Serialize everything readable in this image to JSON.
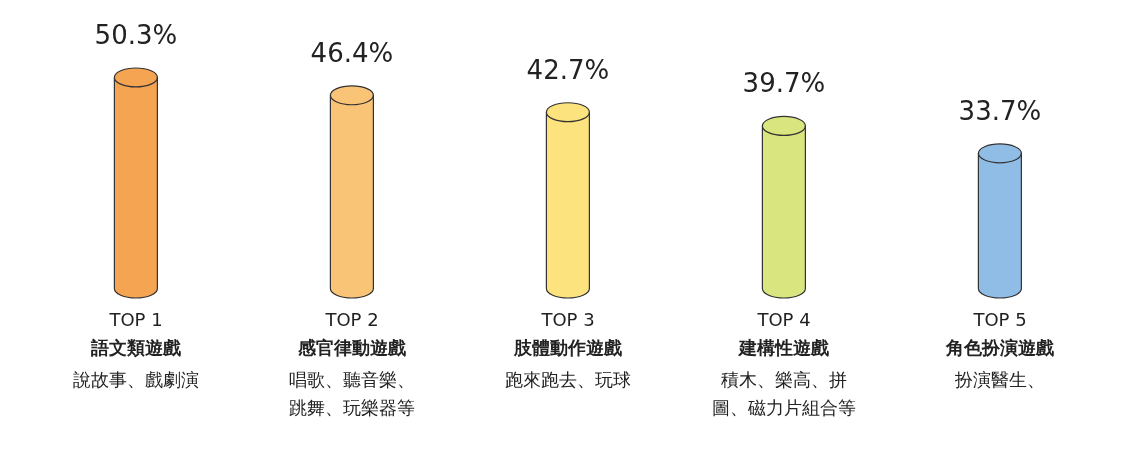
{
  "chart_data": {
    "type": "bar",
    "categories": [
      "TOP 1\n語文類遊戲",
      "TOP 2\n感官律動遊戲",
      "TOP 3\n肢體動作遊戲",
      "TOP 4\n建構性遊戲",
      "TOP 5\n角色扮演遊戲"
    ],
    "values": [
      50.3,
      46.4,
      42.7,
      39.7,
      33.7
    ],
    "colors": [
      "#f5a452",
      "#fac477",
      "#fde37d",
      "#d9e67f",
      "#8fbde6"
    ],
    "value_labels": [
      "50.3%",
      "46.4%",
      "42.7%",
      "39.7%",
      "33.7%"
    ],
    "annotations": [
      "說故事、戲劇演",
      "唱歌、聽音樂、跳舞、玩樂器等",
      "跑來跑去、玩球",
      "積木、樂高、拼圖、磁力片組合等",
      "扮演醫生、"
    ]
  }
}
